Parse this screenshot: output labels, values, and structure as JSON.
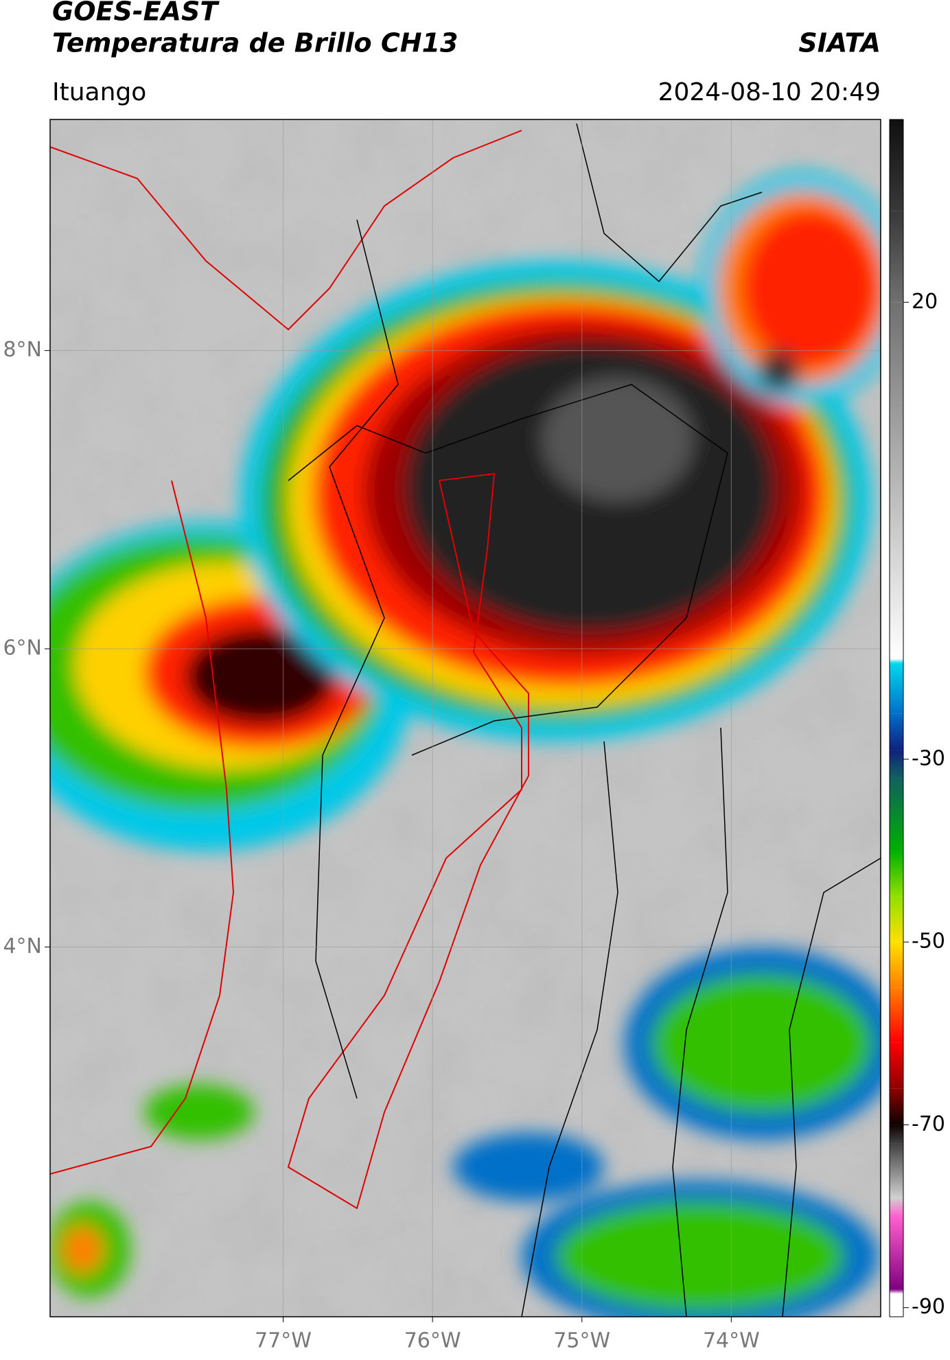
{
  "chart_data": {
    "type": "map",
    "title": "GOES-EAST",
    "subtitle": "Temperatura de Brillo CH13",
    "source": "SIATA",
    "location": "Ituango",
    "datetime": "2024-08-10 20:49",
    "xlim": [
      -78.56,
      -73.0
    ],
    "ylim": [
      1.52,
      9.55
    ],
    "xticks": [
      {
        "value": -77,
        "label": "77°W"
      },
      {
        "value": -76,
        "label": "76°W"
      },
      {
        "value": -75,
        "label": "75°W"
      },
      {
        "value": -74,
        "label": "74°W"
      }
    ],
    "yticks": [
      {
        "value": 4,
        "label": "4°N"
      },
      {
        "value": 6,
        "label": "6°N"
      },
      {
        "value": 8,
        "label": "8°N"
      }
    ],
    "grid": true,
    "colorbar": {
      "lim": [
        -91,
        40
      ],
      "ticks": [
        20,
        -30,
        -50,
        -70,
        -90
      ],
      "stops": [
        {
          "value": 40,
          "color": "#101010"
        },
        {
          "value": 30,
          "color": "#383838"
        },
        {
          "value": 20,
          "color": "#707070"
        },
        {
          "value": 0,
          "color": "#b8b8b8"
        },
        {
          "value": -19,
          "color": "#ffffff"
        },
        {
          "value": -19.5,
          "color": "#00d8f0"
        },
        {
          "value": -25,
          "color": "#0070c8"
        },
        {
          "value": -29,
          "color": "#102080"
        },
        {
          "value": -32,
          "color": "#106060"
        },
        {
          "value": -40,
          "color": "#00b000"
        },
        {
          "value": -45,
          "color": "#90e000"
        },
        {
          "value": -50,
          "color": "#ffe000"
        },
        {
          "value": -55,
          "color": "#ff8000"
        },
        {
          "value": -61,
          "color": "#ff0000"
        },
        {
          "value": -66,
          "color": "#900000"
        },
        {
          "value": -70,
          "color": "#100000"
        },
        {
          "value": -72,
          "color": "#404040"
        },
        {
          "value": -78,
          "color": "#d0d0d0"
        },
        {
          "value": -80,
          "color": "#ff60d0"
        },
        {
          "value": -88,
          "color": "#800080"
        },
        {
          "value": -88.5,
          "color": "#ffffff"
        },
        {
          "value": -91,
          "color": "#ffffff"
        }
      ]
    }
  }
}
